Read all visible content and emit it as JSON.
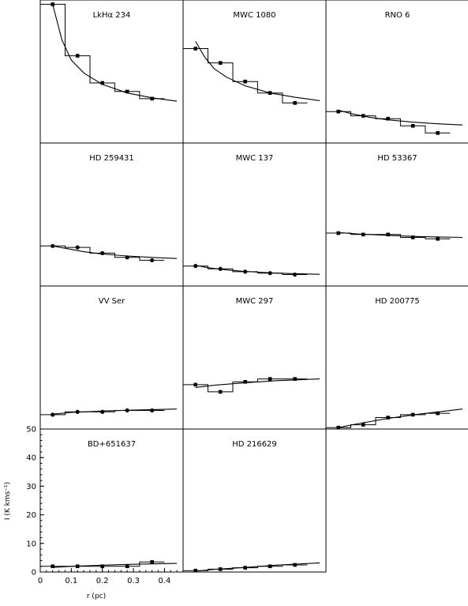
{
  "chart_data": {
    "type": "line",
    "layout": "grid 4 rows x 3 columns, last row has 2 panels",
    "xlabel": "r (pc)",
    "ylabel": "I (K kms⁻¹)",
    "xlim": [
      0,
      0.46
    ],
    "ylim": [
      0,
      50
    ],
    "xticks": [
      0,
      0.1,
      0.2,
      0.3,
      0.4
    ],
    "xtick_labels": [
      "0",
      "0.1",
      "0.2",
      "0.3",
      "0.4"
    ],
    "yticks": [
      0,
      10,
      20,
      30,
      40,
      50
    ],
    "ytick_labels": [
      "0",
      "10",
      "20",
      "30",
      "40",
      "50"
    ],
    "x_bins": [
      0.04,
      0.12,
      0.2,
      0.28,
      0.36
    ],
    "panels": [
      {
        "title": "LkHα 234",
        "marker": "square",
        "points": [
          48.5,
          30.5,
          21.0,
          18.0,
          15.5
        ],
        "steps": [
          48.5,
          30.5,
          21.0,
          18.0,
          15.5
        ],
        "model": [
          [
            0.04,
            48.5
          ],
          [
            0.07,
            36.0
          ],
          [
            0.1,
            29.0
          ],
          [
            0.14,
            24.5
          ],
          [
            0.2,
            20.5
          ],
          [
            0.28,
            17.5
          ],
          [
            0.36,
            15.8
          ],
          [
            0.44,
            14.6
          ]
        ]
      },
      {
        "title": "MWC 1080",
        "marker": "square",
        "points": [
          33.0,
          28.0,
          21.5,
          17.5,
          14.0
        ],
        "steps": [
          33.0,
          28.0,
          21.5,
          17.5,
          14.0
        ],
        "model": [
          [
            0.04,
            35.5
          ],
          [
            0.07,
            30.0
          ],
          [
            0.1,
            26.0
          ],
          [
            0.14,
            23.0
          ],
          [
            0.2,
            20.0
          ],
          [
            0.28,
            17.5
          ],
          [
            0.36,
            16.0
          ],
          [
            0.44,
            14.8
          ]
        ]
      },
      {
        "title": "RNO 6",
        "marker": "square",
        "points": [
          11.0,
          9.5,
          8.5,
          6.0,
          3.5
        ],
        "steps": [
          11.0,
          9.5,
          8.5,
          6.0,
          3.5
        ],
        "model": [
          [
            0.04,
            11.5
          ],
          [
            0.08,
            10.3
          ],
          [
            0.14,
            9.0
          ],
          [
            0.2,
            8.1
          ],
          [
            0.28,
            7.3
          ],
          [
            0.36,
            6.7
          ],
          [
            0.44,
            6.3
          ]
        ]
      },
      {
        "title": "HD 259431",
        "marker": "circle",
        "points": [
          14.0,
          13.5,
          11.5,
          10.0,
          9.0
        ],
        "steps": [
          14.0,
          13.5,
          11.5,
          10.0,
          9.0
        ],
        "model": [
          [
            0.04,
            14.0
          ],
          [
            0.08,
            13.2
          ],
          [
            0.14,
            12.0
          ],
          [
            0.2,
            11.2
          ],
          [
            0.28,
            10.5
          ],
          [
            0.36,
            10.0
          ],
          [
            0.44,
            9.6
          ]
        ]
      },
      {
        "title": "MWC 137",
        "marker": "circle",
        "points": [
          7.0,
          6.0,
          5.0,
          4.5,
          4.0
        ],
        "steps": [
          7.0,
          6.0,
          5.0,
          4.5,
          4.0
        ],
        "model": [
          [
            0.04,
            7.2
          ],
          [
            0.08,
            6.4
          ],
          [
            0.14,
            5.6
          ],
          [
            0.2,
            5.1
          ],
          [
            0.28,
            4.6
          ],
          [
            0.36,
            4.3
          ],
          [
            0.44,
            4.1
          ]
        ]
      },
      {
        "title": "HD 53367",
        "marker": "square",
        "points": [
          18.5,
          18.0,
          18.0,
          17.0,
          16.5
        ],
        "steps": [
          18.5,
          18.0,
          18.0,
          17.0,
          16.5
        ],
        "model": [
          [
            0.04,
            18.7
          ],
          [
            0.1,
            18.2
          ],
          [
            0.2,
            17.7
          ],
          [
            0.3,
            17.3
          ],
          [
            0.44,
            17.0
          ]
        ]
      },
      {
        "title": "VV Ser",
        "marker": "circle",
        "points": [
          5.0,
          6.0,
          6.0,
          6.5,
          6.5
        ],
        "steps": [
          5.0,
          6.0,
          6.0,
          6.5,
          6.5
        ],
        "model": [
          [
            0.04,
            5.2
          ],
          [
            0.1,
            5.8
          ],
          [
            0.2,
            6.3
          ],
          [
            0.3,
            6.6
          ],
          [
            0.44,
            7.0
          ]
        ]
      },
      {
        "title": "MWC 297",
        "marker": "square",
        "points": [
          15.5,
          13.0,
          16.5,
          17.5,
          17.5
        ],
        "steps": [
          15.5,
          13.0,
          16.5,
          17.5,
          17.5
        ],
        "model": [
          [
            0.04,
            14.5
          ],
          [
            0.1,
            15.3
          ],
          [
            0.2,
            16.2
          ],
          [
            0.3,
            16.9
          ],
          [
            0.44,
            17.5
          ]
        ]
      },
      {
        "title": "HD 200775",
        "marker": "square",
        "points": [
          0.5,
          1.5,
          4.0,
          5.0,
          5.5
        ],
        "steps": [
          0.5,
          1.5,
          4.0,
          5.0,
          5.5
        ],
        "model": [
          [
            0.04,
            0.5
          ],
          [
            0.1,
            1.8
          ],
          [
            0.2,
            3.7
          ],
          [
            0.3,
            5.2
          ],
          [
            0.44,
            7.0
          ]
        ]
      },
      {
        "title": "BD+651637",
        "marker": "square",
        "points": [
          2.0,
          2.0,
          2.0,
          2.0,
          3.5
        ],
        "steps": [
          2.0,
          2.0,
          2.0,
          2.0,
          3.5
        ],
        "model": [
          [
            0.04,
            1.6
          ],
          [
            0.1,
            2.0
          ],
          [
            0.2,
            2.4
          ],
          [
            0.3,
            2.7
          ],
          [
            0.44,
            3.0
          ]
        ]
      },
      {
        "title": "HD 216629",
        "marker": "square",
        "points": [
          0.5,
          1.0,
          1.5,
          2.0,
          2.5
        ],
        "steps": [
          0.5,
          1.0,
          1.5,
          2.0,
          2.5
        ],
        "model": [
          [
            0.04,
            0.3
          ],
          [
            0.1,
            0.9
          ],
          [
            0.2,
            1.6
          ],
          [
            0.3,
            2.4
          ],
          [
            0.44,
            3.2
          ]
        ]
      }
    ]
  }
}
